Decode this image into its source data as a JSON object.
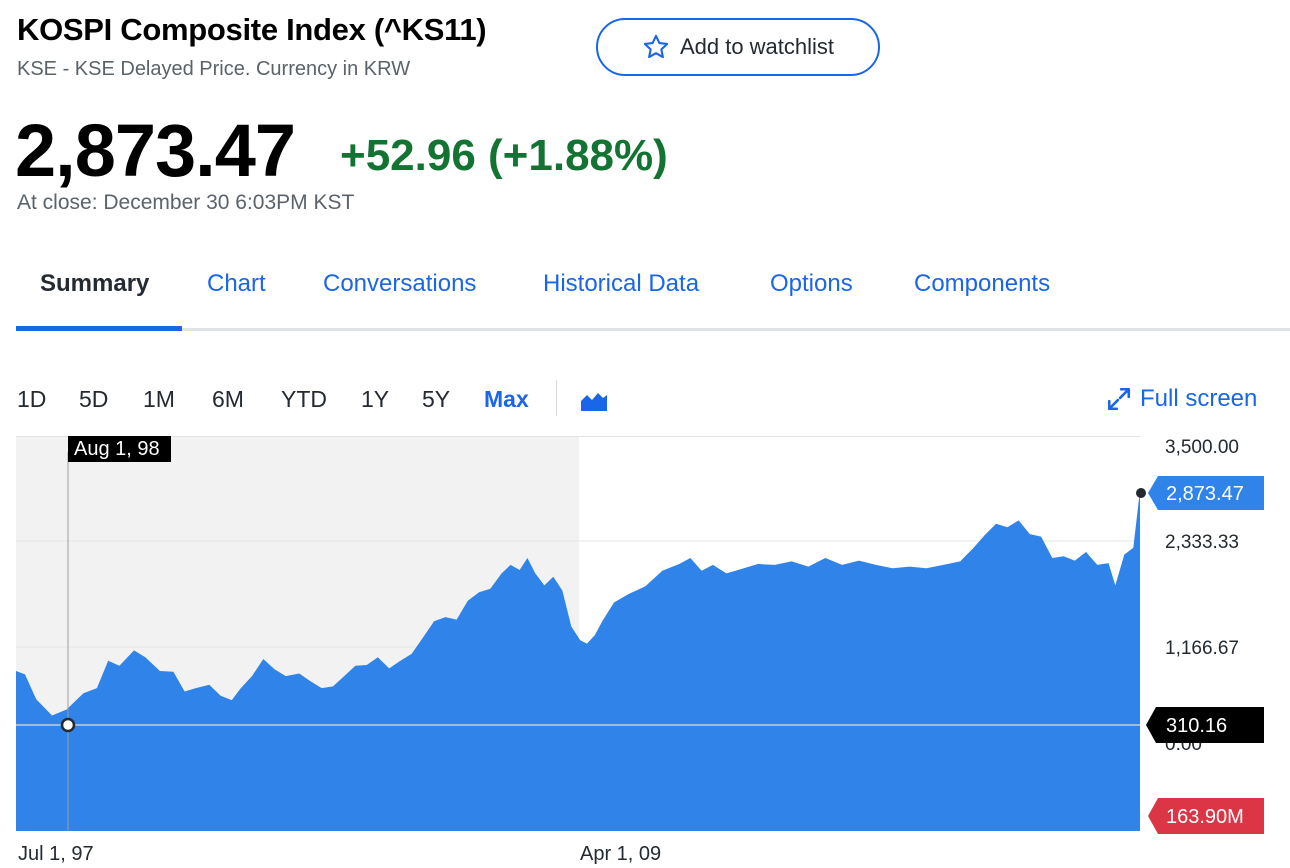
{
  "header": {
    "title": "KOSPI Composite Index (^KS11)",
    "subtitle": "KSE - KSE Delayed Price. Currency in KRW",
    "watchlist_label": "Add to watchlist",
    "price": "2,873.47",
    "change": "+52.96 (+1.88%)",
    "close_time": "At close: December 30 6:03PM KST"
  },
  "tabs": [
    {
      "label": "Summary",
      "active": true
    },
    {
      "label": "Chart"
    },
    {
      "label": "Conversations"
    },
    {
      "label": "Historical Data"
    },
    {
      "label": "Options"
    },
    {
      "label": "Components"
    }
  ],
  "ranges": [
    "1D",
    "5D",
    "1M",
    "6M",
    "YTD",
    "1Y",
    "5Y",
    "Max"
  ],
  "active_range": "Max",
  "fullscreen_label": "Full screen",
  "colors": {
    "accent": "#1a66e8",
    "area": "#2f83e9",
    "up": "#137333",
    "down": "#dc3545"
  },
  "chart_data": {
    "type": "area",
    "y_ticks": [
      "3,500.00",
      "2,333.33",
      "1,166.67",
      "0.00"
    ],
    "ylim": [
      0,
      3500
    ],
    "x_ticks": [
      "Jul 1, 97",
      "Apr 1, 09"
    ],
    "crosshair_date": "Aug 1, 98",
    "crosshair_value": "310.16",
    "last_value": "2,873.47",
    "last_volume": "163.90M",
    "price_series": [
      {
        "x": 0,
        "y": 760
      },
      {
        "x": 0.008,
        "y": 720
      },
      {
        "x": 0.018,
        "y": 430
      },
      {
        "x": 0.032,
        "y": 240
      },
      {
        "x": 0.045,
        "y": 310
      },
      {
        "x": 0.06,
        "y": 500
      },
      {
        "x": 0.072,
        "y": 560
      },
      {
        "x": 0.082,
        "y": 880
      },
      {
        "x": 0.092,
        "y": 820
      },
      {
        "x": 0.105,
        "y": 1000
      },
      {
        "x": 0.115,
        "y": 920
      },
      {
        "x": 0.128,
        "y": 760
      },
      {
        "x": 0.14,
        "y": 750
      },
      {
        "x": 0.15,
        "y": 520
      },
      {
        "x": 0.16,
        "y": 560
      },
      {
        "x": 0.172,
        "y": 600
      },
      {
        "x": 0.182,
        "y": 470
      },
      {
        "x": 0.192,
        "y": 420
      },
      {
        "x": 0.2,
        "y": 560
      },
      {
        "x": 0.21,
        "y": 700
      },
      {
        "x": 0.22,
        "y": 900
      },
      {
        "x": 0.23,
        "y": 780
      },
      {
        "x": 0.24,
        "y": 700
      },
      {
        "x": 0.252,
        "y": 730
      },
      {
        "x": 0.262,
        "y": 640
      },
      {
        "x": 0.272,
        "y": 560
      },
      {
        "x": 0.282,
        "y": 580
      },
      {
        "x": 0.292,
        "y": 700
      },
      {
        "x": 0.302,
        "y": 820
      },
      {
        "x": 0.312,
        "y": 830
      },
      {
        "x": 0.322,
        "y": 920
      },
      {
        "x": 0.332,
        "y": 790
      },
      {
        "x": 0.342,
        "y": 880
      },
      {
        "x": 0.352,
        "y": 960
      },
      {
        "x": 0.362,
        "y": 1150
      },
      {
        "x": 0.372,
        "y": 1340
      },
      {
        "x": 0.382,
        "y": 1390
      },
      {
        "x": 0.392,
        "y": 1360
      },
      {
        "x": 0.402,
        "y": 1580
      },
      {
        "x": 0.412,
        "y": 1680
      },
      {
        "x": 0.422,
        "y": 1720
      },
      {
        "x": 0.432,
        "y": 1900
      },
      {
        "x": 0.44,
        "y": 2000
      },
      {
        "x": 0.448,
        "y": 1940
      },
      {
        "x": 0.455,
        "y": 2080
      },
      {
        "x": 0.462,
        "y": 1900
      },
      {
        "x": 0.47,
        "y": 1760
      },
      {
        "x": 0.478,
        "y": 1860
      },
      {
        "x": 0.486,
        "y": 1700
      },
      {
        "x": 0.494,
        "y": 1280
      },
      {
        "x": 0.502,
        "y": 1120
      },
      {
        "x": 0.508,
        "y": 1080
      },
      {
        "x": 0.515,
        "y": 1180
      },
      {
        "x": 0.522,
        "y": 1350
      },
      {
        "x": 0.532,
        "y": 1560
      },
      {
        "x": 0.545,
        "y": 1660
      },
      {
        "x": 0.56,
        "y": 1750
      },
      {
        "x": 0.575,
        "y": 1930
      },
      {
        "x": 0.59,
        "y": 2010
      },
      {
        "x": 0.6,
        "y": 2080
      },
      {
        "x": 0.61,
        "y": 1930
      },
      {
        "x": 0.62,
        "y": 2000
      },
      {
        "x": 0.632,
        "y": 1900
      },
      {
        "x": 0.645,
        "y": 1950
      },
      {
        "x": 0.66,
        "y": 2010
      },
      {
        "x": 0.675,
        "y": 2000
      },
      {
        "x": 0.69,
        "y": 2040
      },
      {
        "x": 0.705,
        "y": 1980
      },
      {
        "x": 0.72,
        "y": 2080
      },
      {
        "x": 0.735,
        "y": 2000
      },
      {
        "x": 0.75,
        "y": 2050
      },
      {
        "x": 0.765,
        "y": 2000
      },
      {
        "x": 0.78,
        "y": 1960
      },
      {
        "x": 0.795,
        "y": 1980
      },
      {
        "x": 0.81,
        "y": 1960
      },
      {
        "x": 0.825,
        "y": 2000
      },
      {
        "x": 0.84,
        "y": 2040
      },
      {
        "x": 0.852,
        "y": 2200
      },
      {
        "x": 0.862,
        "y": 2350
      },
      {
        "x": 0.872,
        "y": 2480
      },
      {
        "x": 0.882,
        "y": 2440
      },
      {
        "x": 0.892,
        "y": 2520
      },
      {
        "x": 0.902,
        "y": 2360
      },
      {
        "x": 0.912,
        "y": 2330
      },
      {
        "x": 0.922,
        "y": 2080
      },
      {
        "x": 0.932,
        "y": 2100
      },
      {
        "x": 0.942,
        "y": 2050
      },
      {
        "x": 0.952,
        "y": 2150
      },
      {
        "x": 0.962,
        "y": 2000
      },
      {
        "x": 0.972,
        "y": 2020
      },
      {
        "x": 0.978,
        "y": 1760
      },
      {
        "x": 0.986,
        "y": 2120
      },
      {
        "x": 0.994,
        "y": 2200
      },
      {
        "x": 1.0,
        "y": 2873
      }
    ]
  }
}
